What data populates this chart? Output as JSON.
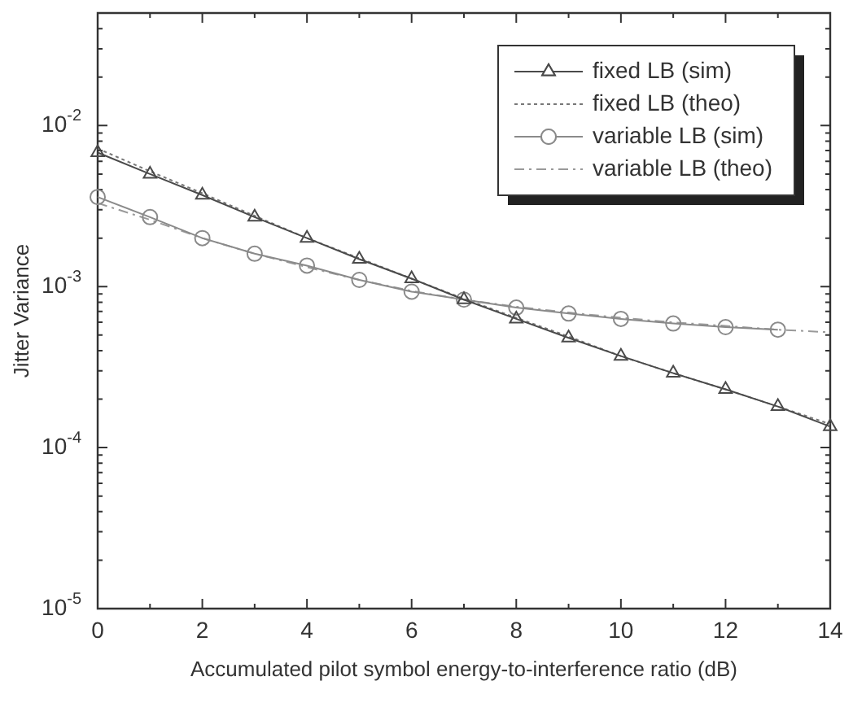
{
  "chart_data": {
    "type": "line",
    "xlabel": "Accumulated pilot symbol energy-to-interference ratio (dB)",
    "ylabel": "Jitter Variance",
    "x": [
      0,
      1,
      2,
      3,
      4,
      5,
      6,
      7,
      8,
      9,
      10,
      11,
      12,
      13,
      14
    ],
    "xlim": [
      0,
      14
    ],
    "xticks": [
      0,
      {
        "value": 1,
        "label": null
      },
      2,
      {
        "value": 3,
        "label": null
      },
      4,
      {
        "value": 5,
        "label": null
      },
      6,
      {
        "value": 7,
        "label": null
      },
      8,
      {
        "value": 9,
        "label": null
      },
      10,
      {
        "value": 11,
        "label": null
      },
      12,
      {
        "value": 13,
        "label": null
      },
      14
    ],
    "ylim": [
      1e-05,
      0.05
    ],
    "yticks": [
      {
        "value": 1e-05,
        "label": "10$^{-5}$"
      },
      {
        "value": 0.0001,
        "label": "10$^{-4}$"
      },
      {
        "value": 0.001,
        "label": "10$^{-3}$"
      },
      {
        "value": 0.01,
        "label": "10$^{-2}$"
      }
    ],
    "log": "y",
    "grid": false,
    "legend": "top right",
    "series": [
      {
        "name": "fixed LB (sim)",
        "color": "#4a4a4a",
        "marker": "triangle",
        "line_style": "solid",
        "values": [
          0.0068,
          0.005,
          0.0037,
          0.0027,
          0.002,
          0.00148,
          0.00112,
          0.00083,
          0.00063,
          0.00048,
          0.00037,
          0.00029,
          0.00023,
          0.00018,
          0.000135
        ]
      },
      {
        "name": "fixed LB (theo)",
        "color": "#777777",
        "marker": "none",
        "line_style": "dotted",
        "values": [
          0.0072,
          0.0052,
          0.0038,
          0.00275,
          0.002,
          0.0015,
          0.00112,
          0.00084,
          0.00064,
          0.00049,
          0.00037,
          0.00029,
          0.00023,
          0.00018,
          0.00014
        ]
      },
      {
        "name": "variable LB (sim)",
        "color": "#8a8a8a",
        "marker": "circle",
        "line_style": "solid",
        "values": [
          0.0036,
          0.0027,
          0.002,
          0.0016,
          0.00135,
          0.0011,
          0.00093,
          0.00083,
          0.00074,
          0.00068,
          0.00063,
          0.00059,
          0.00056,
          0.00054,
          null
        ]
      },
      {
        "name": "variable LB (theo)",
        "color": "#9a9a9a",
        "marker": "none",
        "line_style": "dashed",
        "values": [
          0.0033,
          0.0026,
          0.002,
          0.0016,
          0.00132,
          0.0011,
          0.00094,
          0.00083,
          0.00075,
          0.00069,
          0.00064,
          0.0006,
          0.00057,
          0.00054,
          0.00052
        ]
      }
    ]
  }
}
